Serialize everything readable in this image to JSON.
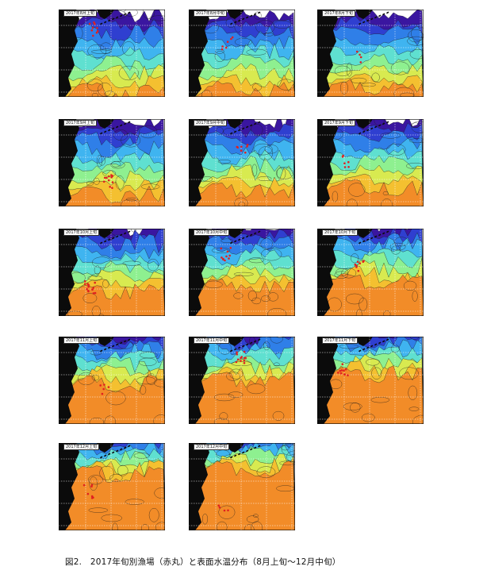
{
  "figure": {
    "caption": "図2.　2017年旬別漁場（赤丸）と表面水温分布（8月上旬〜12月中旬）",
    "panels": [
      {
        "label": "2017年8月上旬",
        "season": 0.0,
        "seed": 1
      },
      {
        "label": "2017年8月中旬",
        "season": 0.03,
        "seed": 2
      },
      {
        "label": "2017年8月下旬",
        "season": 0.07,
        "seed": 3
      },
      {
        "label": "2017年9月上旬",
        "season": 0.12,
        "seed": 4
      },
      {
        "label": "2017年9月中旬",
        "season": 0.17,
        "seed": 5
      },
      {
        "label": "2017年9月下旬",
        "season": 0.24,
        "seed": 6
      },
      {
        "label": "2017年10月上旬",
        "season": 0.33,
        "seed": 7
      },
      {
        "label": "2017年10月中旬",
        "season": 0.42,
        "seed": 8
      },
      {
        "label": "2017年10月下旬",
        "season": 0.5,
        "seed": 9
      },
      {
        "label": "2017年11月上旬",
        "season": 0.6,
        "seed": 10
      },
      {
        "label": "2017年11月中旬",
        "season": 0.68,
        "seed": 11
      },
      {
        "label": "2017年11月下旬",
        "season": 0.76,
        "seed": 12
      },
      {
        "label": "2017年12月上旬",
        "season": 0.88,
        "seed": 13
      },
      {
        "label": "2017年12月中旬",
        "season": 0.96,
        "seed": 14
      }
    ],
    "colors": {
      "land": "#0b0b0b",
      "fishing_ground": "#e02020",
      "sst_ramp": [
        "#3a16a0",
        "#2f3fd0",
        "#2f7fe8",
        "#3fb4f0",
        "#5fe0d0",
        "#8ef090",
        "#d8ea50",
        "#f4c030",
        "#f28c28"
      ]
    }
  }
}
